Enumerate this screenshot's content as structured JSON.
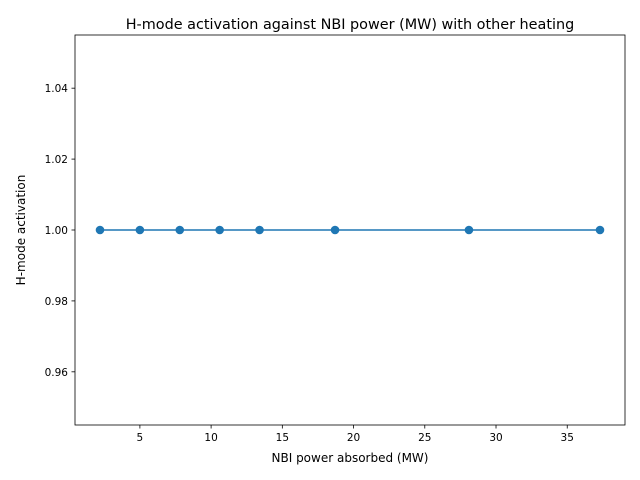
{
  "chart_data": {
    "type": "line",
    "title": "H-mode activation against NBI power (MW) with other heating",
    "xlabel": "NBI power absorbed (MW)",
    "ylabel": "H-mode activation",
    "x": [
      2.2,
      5.0,
      7.8,
      10.6,
      13.4,
      18.7,
      28.1,
      37.3
    ],
    "series": [
      {
        "values": [
          1,
          1,
          1,
          1,
          1,
          1,
          1,
          1
        ]
      }
    ],
    "xlim": [
      0.445,
      39.055
    ],
    "ylim": [
      0.945,
      1.055
    ],
    "xticks": [
      5,
      10,
      15,
      20,
      25,
      30,
      35
    ],
    "xtick_labels": [
      "5",
      "10",
      "15",
      "20",
      "25",
      "30",
      "35"
    ],
    "yticks": [
      0.96,
      0.98,
      1.0,
      1.02,
      1.04
    ],
    "ytick_labels": [
      "0.96",
      "0.98",
      "1.00",
      "1.02",
      "1.04"
    ],
    "grid": false,
    "markers": true,
    "color": "#1f77b4"
  }
}
